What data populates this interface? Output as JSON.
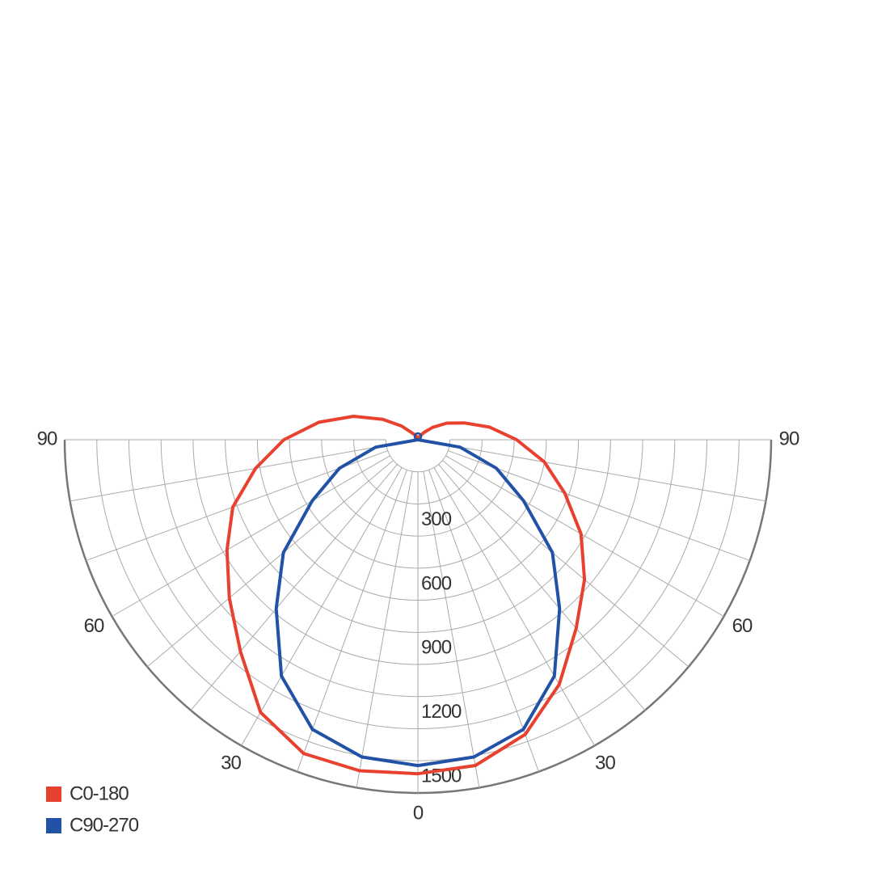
{
  "chart_data": {
    "type": "polar",
    "rlim": [
      0,
      1650
    ],
    "rticks": [
      {
        "value": 150,
        "label": null
      },
      300,
      {
        "value": 450,
        "label": null
      },
      600,
      {
        "value": 750,
        "label": null
      },
      900,
      {
        "value": 1050,
        "label": null
      },
      1200,
      {
        "value": 1350,
        "label": null
      },
      1500,
      {
        "value": 1650,
        "label": null
      }
    ],
    "angle_ticks": [
      {
        "value": -90,
        "label": "90"
      },
      {
        "value": -80,
        "label": null
      },
      {
        "value": -70,
        "label": null
      },
      {
        "value": -60,
        "label": "60"
      },
      {
        "value": -50,
        "label": null
      },
      {
        "value": -40,
        "label": null
      },
      {
        "value": -30,
        "label": "30"
      },
      {
        "value": -20,
        "label": null
      },
      {
        "value": -10,
        "label": null
      },
      0,
      {
        "value": 10,
        "label": null
      },
      {
        "value": 20,
        "label": null
      },
      {
        "value": 30,
        "label": "30"
      },
      {
        "value": 40,
        "label": null
      },
      {
        "value": 50,
        "label": null
      },
      {
        "value": 60,
        "label": "60"
      },
      {
        "value": 70,
        "label": null
      },
      {
        "value": 80,
        "label": null
      },
      {
        "value": 90,
        "label": "90"
      }
    ],
    "series": [
      {
        "name": "C0-180",
        "color": "#e8412f",
        "x": [
          -180,
          -170,
          -160,
          -150,
          -140,
          -130,
          -120,
          -110,
          -100,
          -90,
          -80,
          -70,
          -60,
          -50,
          -40,
          -30,
          -20,
          -10,
          0,
          10,
          20,
          30,
          40,
          50,
          60,
          70,
          80,
          90,
          100,
          110,
          120,
          130,
          140,
          150,
          160,
          170,
          180
        ],
        "values": [
          0,
          5,
          15,
          25,
          41,
          100,
          190,
          320,
          470,
          626,
          770,
          920,
          1030,
          1150,
          1290,
          1470,
          1560,
          1570,
          1560,
          1545,
          1465,
          1320,
          1150,
          1016,
          880,
          730,
          600,
          461,
          340,
          230,
          155,
          90,
          45,
          20,
          8,
          3,
          0
        ]
      },
      {
        "name": "C90-270",
        "color": "#2152a6",
        "x": [
          -90,
          -80,
          -70,
          -60,
          -50,
          -40,
          -30,
          -20,
          -10,
          0,
          10,
          20,
          30,
          40,
          50,
          60,
          70,
          80,
          90
        ],
        "values": [
          0,
          200,
          390,
          570,
          820,
          1030,
          1275,
          1440,
          1505,
          1522,
          1505,
          1440,
          1275,
          1030,
          820,
          570,
          390,
          200,
          0
        ]
      }
    ]
  }
}
